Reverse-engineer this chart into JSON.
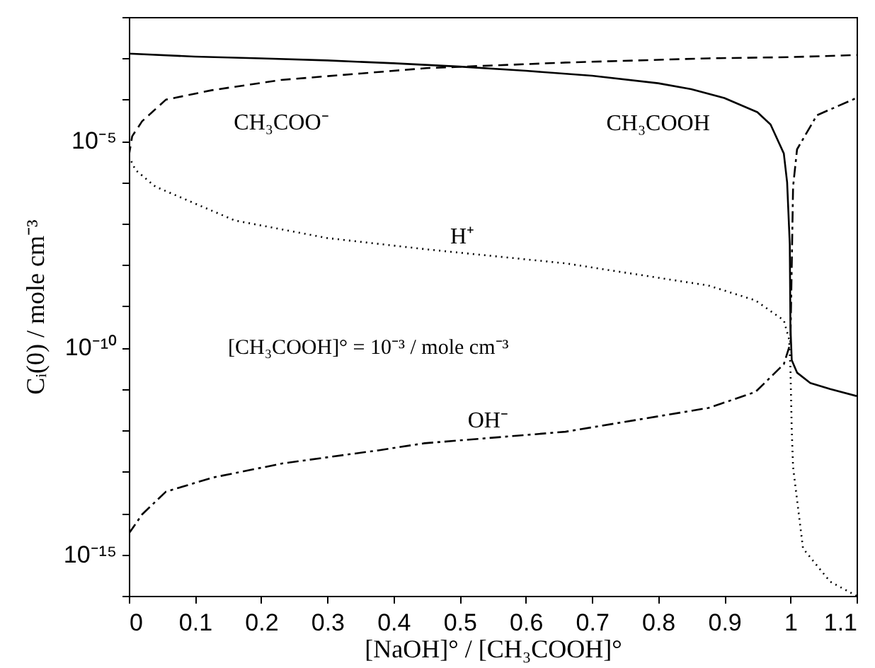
{
  "chart_data": {
    "type": "line",
    "xlabel": "[NaOH]° / [CH₃COOH]°",
    "ylabel": "Cᵢ(0)  /  mole cm⁻³",
    "log": "y",
    "grid": false,
    "annotations": [
      "[CH₃COOH]° = 10⁻³ / mole cm⁻³"
    ],
    "xlim": [
      0,
      1.1
    ],
    "xticks": [
      0,
      0.1,
      0.2,
      0.3,
      0.4,
      0.5,
      0.6,
      0.7,
      0.8,
      0.9,
      1,
      1.1
    ],
    "ylim": [
      1e-16,
      0.01
    ],
    "yticks": [
      {
        "value": 1e-16,
        "label": null
      },
      {
        "value": 1e-15,
        "label": "10⁻¹⁵"
      },
      {
        "value": 1e-14,
        "label": null
      },
      {
        "value": 1e-13,
        "label": null
      },
      {
        "value": 1e-12,
        "label": null
      },
      {
        "value": 1e-11,
        "label": null
      },
      {
        "value": 1e-10,
        "label": "10⁻¹⁰"
      },
      {
        "value": 1e-09,
        "label": null
      },
      {
        "value": 1e-08,
        "label": null
      },
      {
        "value": 1e-07,
        "label": null
      },
      {
        "value": 1e-06,
        "label": null
      },
      {
        "value": 1e-05,
        "label": "10⁻⁵"
      },
      {
        "value": 0.0001,
        "label": null
      },
      {
        "value": 0.001,
        "label": null
      },
      {
        "value": 0.01,
        "label": null
      }
    ],
    "series": [
      {
        "name": "CH₃COOH",
        "color": "#000000",
        "line_style": "solid",
        "x": [
          0,
          0.1,
          0.2,
          0.3,
          0.4,
          0.5,
          0.6,
          0.7,
          0.8,
          0.85,
          0.9,
          0.95,
          0.97,
          0.99,
          0.995,
          0.999,
          1.0,
          1.002,
          1.01,
          1.03,
          1.06,
          1.1
        ],
        "values": [
          0.0013,
          0.0011,
          0.001,
          0.00089,
          0.00076,
          0.00063,
          0.0005,
          0.00038,
          0.00025,
          0.00018,
          0.00011,
          5e-05,
          2.5e-05,
          5e-06,
          1e-06,
          3.2e-08,
          3.2e-10,
          5e-11,
          2.5e-11,
          1.4e-11,
          1e-11,
          6.8e-12
        ]
      },
      {
        "name": "CH₃COO⁻",
        "color": "#000000",
        "line_style": "dashed",
        "x": [
          0,
          0.005,
          0.02,
          0.056,
          0.126,
          0.23,
          0.45,
          0.66,
          0.876,
          1.0,
          1.1
        ],
        "values": [
          4.3e-06,
          1.3e-05,
          3e-05,
          0.0001,
          0.00017,
          0.0003,
          0.00058,
          0.00079,
          0.001,
          0.00107,
          0.0012
        ]
      },
      {
        "name": "H⁺",
        "color": "#000000",
        "line_style": "dotted",
        "x": [
          0,
          0.01,
          0.04,
          0.16,
          0.3,
          0.45,
          0.66,
          0.876,
          0.947,
          0.99,
          0.998,
          1.0,
          1.002,
          1.004,
          1.019,
          1.06,
          1.1
        ],
        "values": [
          4.3e-06,
          2e-06,
          7.9e-07,
          1.2e-07,
          4.5e-08,
          2.4e-08,
          1.1e-08,
          3.2e-09,
          1.4e-09,
          4.6e-10,
          1.6e-10,
          3.2e-11,
          1e-12,
          1.3e-13,
          1.4e-15,
          2.2e-16,
          1e-16
        ]
      },
      {
        "name": "OH⁻",
        "color": "#000000",
        "line_style": "dashdot",
        "x": [
          0,
          0.02,
          0.056,
          0.126,
          0.233,
          0.377,
          0.447,
          0.66,
          0.876,
          0.947,
          0.99,
          1.0,
          1.002,
          1.004,
          1.01,
          1.04,
          1.1
        ],
        "values": [
          3.2e-15,
          9.3e-15,
          3.3e-14,
          7.2e-14,
          1.6e-13,
          3.3e-13,
          4.9e-13,
          9.3e-13,
          3.5e-12,
          8.5e-12,
          4e-11,
          1.3e-10,
          1e-08,
          7.9e-07,
          6.3e-06,
          4.2e-05,
          0.00011
        ]
      }
    ]
  }
}
